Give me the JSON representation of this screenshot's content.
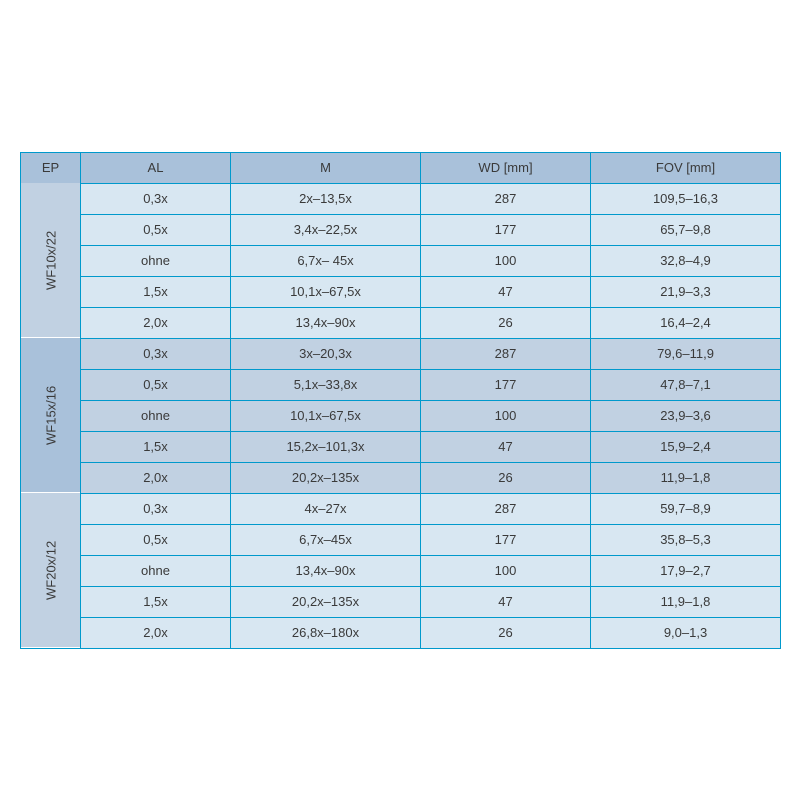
{
  "table": {
    "columns": [
      "EP",
      "AL",
      "M",
      "WD [mm]",
      "FOV [mm]"
    ],
    "header_bg": "#a9c1da",
    "groups": [
      {
        "ep": "WF10x/22",
        "ep_bg": "#c1d1e2",
        "row_bg": "#d8e7f2",
        "rows": [
          [
            "0,3x",
            "2x–13,5x",
            "287",
            "109,5–16,3"
          ],
          [
            "0,5x",
            "3,4x–22,5x",
            "177",
            "65,7–9,8"
          ],
          [
            "ohne",
            "6,7x– 45x",
            "100",
            "32,8–4,9"
          ],
          [
            "1,5x",
            "10,1x–67,5x",
            "47",
            "21,9–3,3"
          ],
          [
            "2,0x",
            "13,4x–90x",
            "26",
            "16,4–2,4"
          ]
        ]
      },
      {
        "ep": "WF15x/16",
        "ep_bg": "#a9c1da",
        "row_bg": "#c1d1e2",
        "rows": [
          [
            "0,3x",
            "3x–20,3x",
            "287",
            "79,6–11,9"
          ],
          [
            "0,5x",
            "5,1x–33,8x",
            "177",
            "47,8–7,1"
          ],
          [
            "ohne",
            "10,1x–67,5x",
            "100",
            "23,9–3,6"
          ],
          [
            "1,5x",
            "15,2x–101,3x",
            "47",
            "15,9–2,4"
          ],
          [
            "2,0x",
            "20,2x–135x",
            "26",
            "11,9–1,8"
          ]
        ]
      },
      {
        "ep": "WF20x/12",
        "ep_bg": "#c1d1e2",
        "row_bg": "#d8e7f2",
        "rows": [
          [
            "0,3x",
            "4x–27x",
            "287",
            "59,7–8,9"
          ],
          [
            "0,5x",
            "6,7x–45x",
            "177",
            "35,8–5,3"
          ],
          [
            "ohne",
            "13,4x–90x",
            "100",
            "17,9–2,7"
          ],
          [
            "1,5x",
            "20,2x–135x",
            "47",
            "11,9–1,8"
          ],
          [
            "2,0x",
            "26,8x–180x",
            "26",
            "9,0–1,3"
          ]
        ]
      }
    ],
    "border_color": "#0099cc"
  }
}
